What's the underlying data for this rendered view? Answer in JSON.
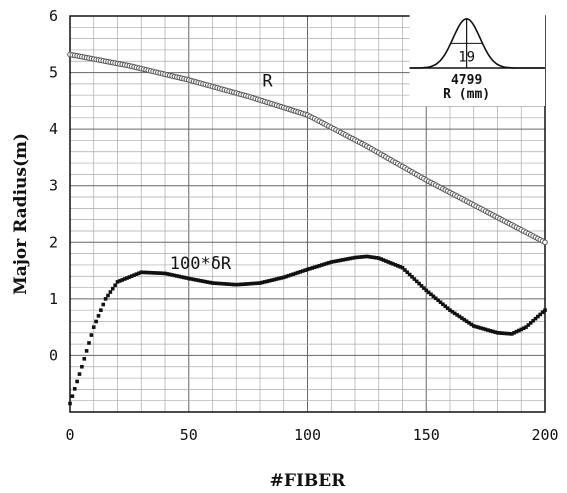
{
  "chart_data": {
    "type": "scatter",
    "title": "",
    "xlabel": "#FIBER",
    "ylabel": "Major Radius(m)",
    "xlim": [
      0,
      200
    ],
    "ylim": [
      -1,
      6
    ],
    "x_ticks": [
      "0",
      "50",
      "100",
      "150",
      "200"
    ],
    "y_ticks": [
      "0",
      "1",
      "2",
      "3",
      "4",
      "5",
      "6"
    ],
    "grid": true,
    "annotations": {
      "r_label": "R",
      "dr_label": "100*δR"
    },
    "inset": {
      "peak_label": "19",
      "center_label": "4799",
      "axis_label": "R (mm)"
    },
    "series": [
      {
        "name": "R",
        "marker": "open-circle",
        "x_range": [
          0,
          200
        ],
        "points_xy": [
          [
            0,
            5.32
          ],
          [
            25,
            5.12
          ],
          [
            50,
            4.87
          ],
          [
            75,
            4.58
          ],
          [
            100,
            4.25
          ],
          [
            125,
            3.7
          ],
          [
            150,
            3.1
          ],
          [
            175,
            2.55
          ],
          [
            200,
            2.0
          ]
        ]
      },
      {
        "name": "100*δR",
        "marker": "filled-square",
        "x_range": [
          0,
          200
        ],
        "points_xy": [
          [
            0,
            -0.85
          ],
          [
            5,
            -0.2
          ],
          [
            10,
            0.5
          ],
          [
            15,
            1.0
          ],
          [
            20,
            1.3
          ],
          [
            30,
            1.47
          ],
          [
            40,
            1.45
          ],
          [
            50,
            1.36
          ],
          [
            60,
            1.28
          ],
          [
            70,
            1.25
          ],
          [
            80,
            1.28
          ],
          [
            90,
            1.38
          ],
          [
            100,
            1.52
          ],
          [
            110,
            1.65
          ],
          [
            120,
            1.73
          ],
          [
            125,
            1.75
          ],
          [
            130,
            1.72
          ],
          [
            140,
            1.55
          ],
          [
            150,
            1.15
          ],
          [
            160,
            0.8
          ],
          [
            170,
            0.52
          ],
          [
            180,
            0.4
          ],
          [
            186,
            0.38
          ],
          [
            192,
            0.5
          ],
          [
            200,
            0.8
          ]
        ]
      }
    ]
  }
}
